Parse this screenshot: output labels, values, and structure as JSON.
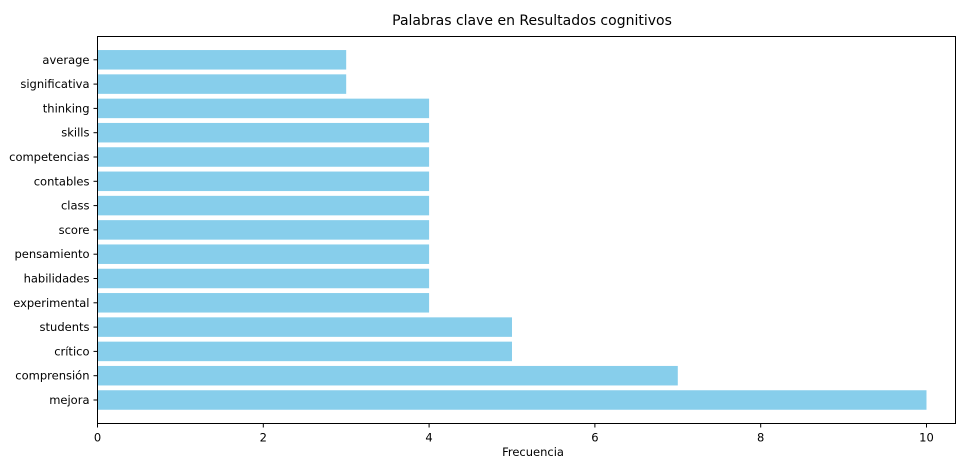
{
  "chart_data": {
    "type": "bar",
    "orientation": "horizontal",
    "title": "Palabras clave en Resultados cognitivos",
    "xlabel": "Frecuencia",
    "ylabel": "",
    "categories": [
      "mejora",
      "comprensión",
      "crítico",
      "students",
      "experimental",
      "habilidades",
      "pensamiento",
      "score",
      "class",
      "contables",
      "competencias",
      "skills",
      "thinking",
      "significativa",
      "average"
    ],
    "values": [
      10,
      7,
      5,
      5,
      4,
      4,
      4,
      4,
      4,
      4,
      4,
      4,
      4,
      3,
      3
    ],
    "xlim": [
      0,
      10.35
    ],
    "xticks": [
      0,
      2,
      4,
      6,
      8,
      10
    ],
    "bar_color": "#87ceeb",
    "grid": false,
    "legend": "none"
  }
}
